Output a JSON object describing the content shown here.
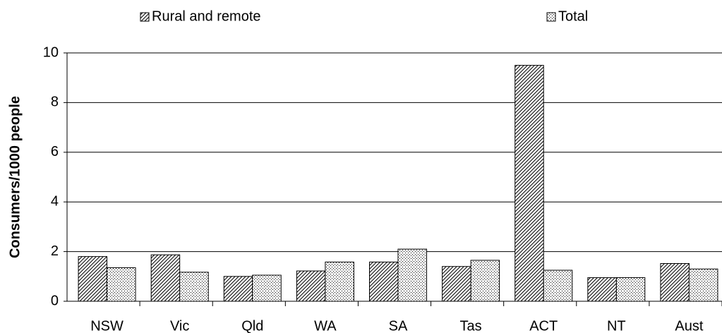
{
  "chart_data": {
    "type": "bar",
    "y_label": "Consumers/1000 people",
    "categories": [
      "NSW",
      "Vic",
      "Qld",
      "WA",
      "SA",
      "Tas",
      "ACT",
      "NT",
      "Aust"
    ],
    "series": [
      {
        "name": "Rural and remote",
        "color": "#000000",
        "pattern": "hatch",
        "values": [
          1.8,
          1.87,
          1.0,
          1.22,
          1.58,
          1.4,
          9.5,
          0.95,
          1.52
        ]
      },
      {
        "name": "Total",
        "color": "#000000",
        "pattern": "dots",
        "values": [
          1.35,
          1.17,
          1.05,
          1.58,
          2.1,
          1.65,
          1.25,
          0.95,
          1.3
        ]
      }
    ],
    "ylim": [
      0,
      10
    ],
    "yticks": [
      0,
      2,
      4,
      6,
      8,
      10
    ],
    "grid": true,
    "legend": "top"
  }
}
